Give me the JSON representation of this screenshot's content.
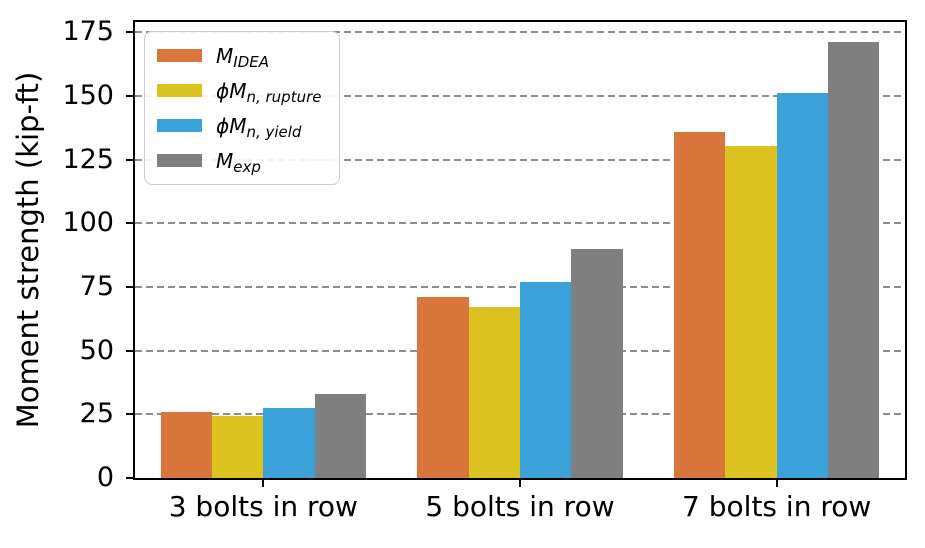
{
  "chart_data": {
    "type": "bar",
    "title": "",
    "xlabel": "",
    "ylabel": "Moment strength (kip-ft)",
    "categories": [
      "3 bolts in row",
      "5 bolts in row",
      "7 bolts in row"
    ],
    "series": [
      {
        "name": "M_IDEA",
        "legend": {
          "phi": false,
          "base": "M",
          "sub": "IDEA"
        },
        "color": "#d9763b",
        "values": [
          26,
          71,
          136
        ]
      },
      {
        "name": "phiMn_rupture",
        "legend": {
          "phi": true,
          "base": "M",
          "sub": "n, rupture"
        },
        "color": "#ddc320",
        "values": [
          24.5,
          67,
          130.5
        ]
      },
      {
        "name": "phiMn_yield",
        "legend": {
          "phi": true,
          "base": "M",
          "sub": "n, yield"
        },
        "color": "#3ba1d9",
        "values": [
          27.5,
          77,
          151
        ]
      },
      {
        "name": "M_exp",
        "legend": {
          "phi": false,
          "base": "M",
          "sub": "exp"
        },
        "color": "#7f7f7f",
        "values": [
          33,
          90,
          171
        ]
      }
    ],
    "ylim": [
      0,
      179
    ],
    "yticks": [
      0,
      25,
      50,
      75,
      100,
      125,
      150,
      175
    ],
    "grid": {
      "axis": "y",
      "style": "dashed",
      "color": "#8c8c8c"
    },
    "legend_position": "upper left",
    "bar_group_width_fraction": 0.8,
    "phi_symbol": "ϕ",
    "colors": {
      "axis": "#000000",
      "background": "#ffffff"
    }
  }
}
